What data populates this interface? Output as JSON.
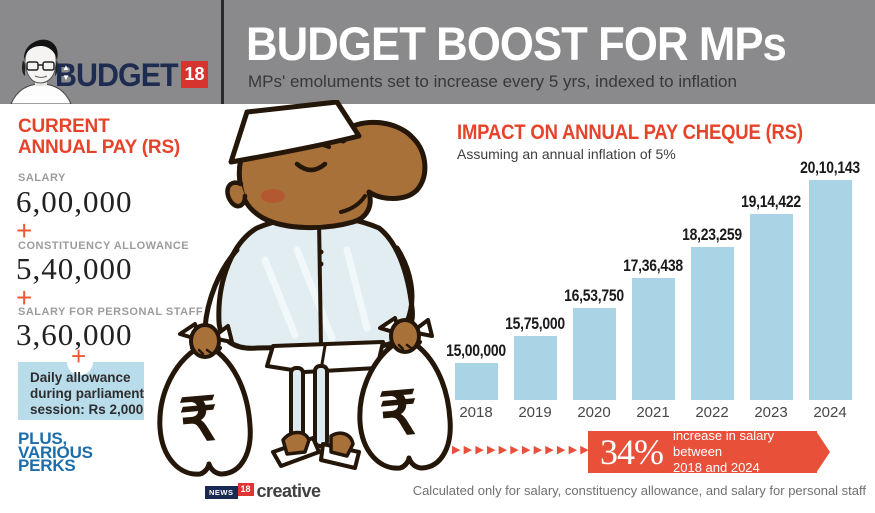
{
  "header": {
    "title": "BUDGET BOOST FOR MPs",
    "subtitle": "MPs' emoluments set to increase every 5 yrs, indexed to inflation"
  },
  "logo": {
    "budget": "BUDGET",
    "year": "18"
  },
  "news18": {
    "news": "NEWS",
    "eighteen": "18",
    "creative": "creative"
  },
  "left_panel": {
    "heading": "CURRENT\nANNUAL PAY (RS)",
    "plus": "+",
    "items": [
      {
        "label": "SALARY",
        "value": "6,00,000"
      },
      {
        "label": "CONSTITUENCY ALLOWANCE",
        "value": "5,40,000"
      },
      {
        "label": "SALARY FOR PERSONAL STAFF",
        "value": "3,60,000"
      }
    ],
    "note": "Daily allowance\nduring parliament\nsession: Rs 2,000",
    "perks": "PLUS,\nVARIOUS\nPERKS"
  },
  "cartoon": {
    "bag_symbol": "₹"
  },
  "chart_data": {
    "type": "bar",
    "title": "IMPACT ON ANNUAL PAY CHEQUE (RS)",
    "subtitle": "Assuming an annual inflation of 5%",
    "categories": [
      "2018",
      "2019",
      "2020",
      "2021",
      "2022",
      "2023",
      "2024"
    ],
    "values": [
      1500000,
      1575000,
      1653750,
      1736438,
      1823259,
      1914422,
      2010143
    ],
    "value_labels": [
      "15,00,000",
      "15,75,000",
      "16,53,750",
      "17,36,438",
      "18,23,259",
      "19,14,422",
      "20,10,143"
    ],
    "bar_color": "#a9d4e6",
    "xlabel": "",
    "ylabel": "",
    "ylim": [
      1400000,
      2010143
    ],
    "grid": false,
    "legend": null
  },
  "badge": {
    "percent": "34%",
    "text": "increase in salary between\n2018 and 2024",
    "arrow_count": 13,
    "color": "#e8503a"
  },
  "footnote": "Calculated only for salary, constituency allowance, and salary for personal staff",
  "colors": {
    "accent_red": "#e5432a",
    "badge_red": "#e8503a",
    "bar_blue": "#a9d4e6",
    "note_blue": "#b9dcea",
    "perks_blue": "#1d6dab",
    "header_gray": "#8a8a8c",
    "logo_navy": "#1f2c52",
    "logo_box_red": "#d6342f"
  }
}
